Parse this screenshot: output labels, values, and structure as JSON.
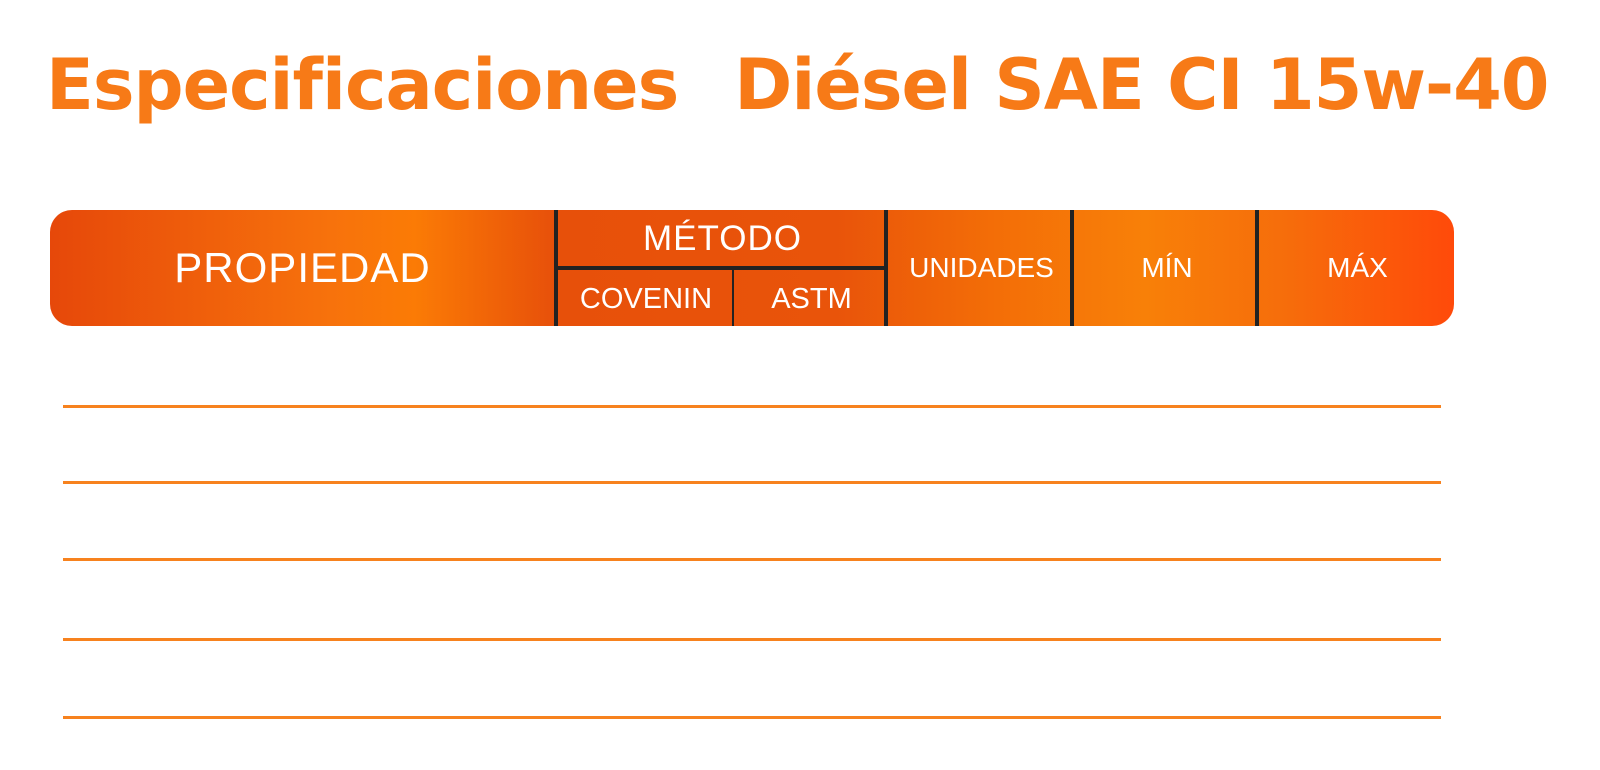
{
  "title": {
    "part1": "Especificaciones",
    "part2": "Diésel SAE CI 15w-40"
  },
  "table_header": {
    "propiedad": "PROPIEDAD",
    "metodo": "MÉTODO",
    "covenin": "COVENIN",
    "astm": "ASTM",
    "unidades": "UNIDADES",
    "min": "MÍN",
    "max": "MÁX"
  },
  "rows": [
    {
      "propiedad": "",
      "covenin": "",
      "astm": "",
      "unidades": "",
      "min": "",
      "max": ""
    },
    {
      "propiedad": "",
      "covenin": "",
      "astm": "",
      "unidades": "",
      "min": "",
      "max": ""
    },
    {
      "propiedad": "",
      "covenin": "",
      "astm": "",
      "unidades": "",
      "min": "",
      "max": ""
    },
    {
      "propiedad": "",
      "covenin": "",
      "astm": "",
      "unidades": "",
      "min": "",
      "max": ""
    },
    {
      "propiedad": "",
      "covenin": "",
      "astm": "",
      "unidades": "",
      "min": "",
      "max": ""
    }
  ],
  "colors": {
    "accent": "#f77a17",
    "header_dark": "#e6480a",
    "divider": "#222222",
    "rule": "#f7821e"
  }
}
